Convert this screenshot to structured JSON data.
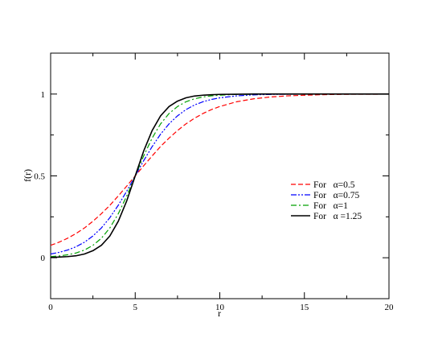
{
  "chart_data": {
    "type": "line",
    "title": "",
    "xlabel": "r",
    "ylabel": "f(r)",
    "xlim": [
      0,
      20
    ],
    "ylim": [
      -0.25,
      1.25
    ],
    "grid": false,
    "legend_position": "center-right",
    "x_ticks": [
      {
        "value": 0,
        "label": "0"
      },
      {
        "value": 5,
        "label": "5"
      },
      {
        "value": 10,
        "label": "10"
      },
      {
        "value": 15,
        "label": "15"
      },
      {
        "value": 20,
        "label": "20"
      }
    ],
    "y_ticks": [
      {
        "value": 0,
        "label": "0"
      },
      {
        "value": 0.5,
        "label": "0.5"
      },
      {
        "value": 1,
        "label": "1"
      }
    ],
    "x": [
      0,
      0.5,
      1,
      1.5,
      2,
      2.5,
      3,
      3.5,
      4,
      4.5,
      5,
      5.5,
      6,
      6.5,
      7,
      7.5,
      8,
      8.5,
      9,
      9.5,
      10,
      11,
      12,
      13,
      14,
      15,
      16,
      17,
      18,
      19,
      20
    ],
    "series": [
      {
        "name": "For   α=0.5",
        "color": "#ff0000",
        "dash": "dashed",
        "values": [
          0.076,
          0.095,
          0.119,
          0.148,
          0.182,
          0.223,
          0.269,
          0.32,
          0.378,
          0.438,
          0.5,
          0.562,
          0.622,
          0.68,
          0.731,
          0.777,
          0.818,
          0.852,
          0.881,
          0.905,
          0.924,
          0.953,
          0.971,
          0.982,
          0.989,
          0.993,
          0.996,
          0.998,
          0.999,
          0.999,
          1.0
        ]
      },
      {
        "name": "For   α=0.75",
        "color": "#0000ff",
        "dash": "dash-dot-dot",
        "values": [
          0.023,
          0.033,
          0.047,
          0.067,
          0.095,
          0.133,
          0.182,
          0.245,
          0.321,
          0.407,
          0.5,
          0.593,
          0.679,
          0.755,
          0.818,
          0.867,
          0.905,
          0.933,
          0.953,
          0.967,
          0.977,
          0.989,
          0.995,
          0.998,
          0.999,
          1.0,
          1.0,
          1.0,
          1.0,
          1.0,
          1.0
        ]
      },
      {
        "name": "For   α=1",
        "color": "#00a000",
        "dash": "dash-dot",
        "values": [
          0.007,
          0.011,
          0.018,
          0.029,
          0.047,
          0.076,
          0.119,
          0.182,
          0.269,
          0.378,
          0.5,
          0.622,
          0.731,
          0.818,
          0.881,
          0.924,
          0.953,
          0.971,
          0.982,
          0.989,
          0.993,
          0.998,
          0.999,
          1.0,
          1.0,
          1.0,
          1.0,
          1.0,
          1.0,
          1.0,
          1.0
        ]
      },
      {
        "name": "For   α =1.25",
        "color": "#000000",
        "dash": "solid",
        "values": [
          0.002,
          0.004,
          0.007,
          0.012,
          0.023,
          0.043,
          0.076,
          0.133,
          0.223,
          0.348,
          0.5,
          0.652,
          0.777,
          0.867,
          0.924,
          0.957,
          0.977,
          0.988,
          0.993,
          0.996,
          0.998,
          0.999,
          1.0,
          1.0,
          1.0,
          1.0,
          1.0,
          1.0,
          1.0,
          1.0,
          1.0
        ]
      }
    ]
  }
}
